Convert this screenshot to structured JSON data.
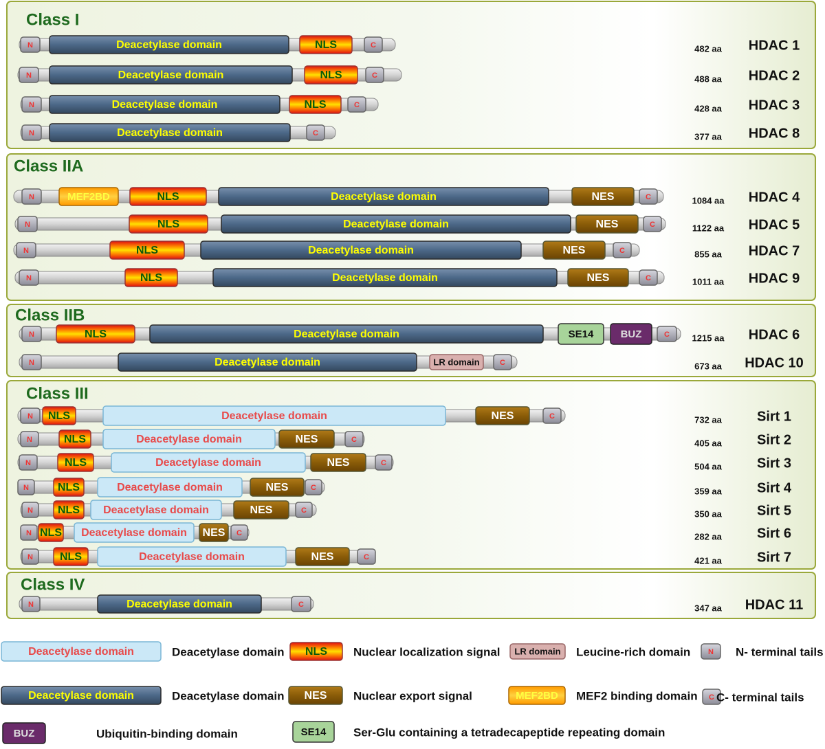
{
  "classes": [
    {
      "title": "Class I",
      "proteins": [
        {
          "name": "HDAC 1",
          "length": "482 aa",
          "domains": [
            "N",
            "Deacetylase domain",
            "NLS",
            "C"
          ]
        },
        {
          "name": "HDAC 2",
          "length": "488 aa",
          "domains": [
            "N",
            "Deacetylase domain",
            "NLS",
            "C"
          ]
        },
        {
          "name": "HDAC 3",
          "length": "428 aa",
          "domains": [
            "N",
            "Deacetylase domain",
            "NLS",
            "C"
          ]
        },
        {
          "name": "HDAC 8",
          "length": "377 aa",
          "domains": [
            "N",
            "Deacetylase domain",
            "C"
          ]
        }
      ]
    },
    {
      "title": "Class IIA",
      "proteins": [
        {
          "name": "HDAC 4",
          "length": "1084 aa",
          "domains": [
            "N",
            "MEF2BD",
            "NLS",
            "Deacetylase domain",
            "NES",
            "C"
          ]
        },
        {
          "name": "HDAC 5",
          "length": "1122 aa",
          "domains": [
            "N",
            "NLS",
            "Deacetylase domain",
            "NES",
            "C"
          ]
        },
        {
          "name": "HDAC 7",
          "length": "855 aa",
          "domains": [
            "N",
            "NLS",
            "Deacetylase domain",
            "NES",
            "C"
          ]
        },
        {
          "name": "HDAC 9",
          "length": "1011 aa",
          "domains": [
            "N",
            "NLS",
            "Deacetylase domain",
            "NES",
            "C"
          ]
        }
      ]
    },
    {
      "title": "Class IIB",
      "proteins": [
        {
          "name": "HDAC 6",
          "length": "1215 aa",
          "domains": [
            "N",
            "NLS",
            "Deacetylase domain",
            "SE14",
            "BUZ",
            "C"
          ]
        },
        {
          "name": "HDAC 10",
          "length": "673 aa",
          "domains": [
            "N",
            "Deacetylase domain",
            "LR domain",
            "C"
          ]
        }
      ]
    },
    {
      "title": "Class III",
      "proteins": [
        {
          "name": "Sirt 1",
          "length": "732 aa",
          "domains": [
            "N",
            "NLS",
            "Deacetylase domain",
            "NES",
            "C"
          ]
        },
        {
          "name": "Sirt 2",
          "length": "405 aa",
          "domains": [
            "N",
            "NLS",
            "Deacetylase domain",
            "NES",
            "C"
          ]
        },
        {
          "name": "Sirt 3",
          "length": "504 aa",
          "domains": [
            "N",
            "NLS",
            "Deacetylase domain",
            "NES",
            "C"
          ]
        },
        {
          "name": "Sirt 4",
          "length": "359 aa",
          "domains": [
            "N",
            "NLS",
            "Deacetylase domain",
            "NES",
            "C"
          ]
        },
        {
          "name": "Sirt 5",
          "length": "350 aa",
          "domains": [
            "N",
            "NLS",
            "Deacetylase domain",
            "NES",
            "C"
          ]
        },
        {
          "name": "Sirt 6",
          "length": "282 aa",
          "domains": [
            "N",
            "NLS",
            "Deacetylase domain",
            "NES",
            "C"
          ]
        },
        {
          "name": "Sirt 7",
          "length": "421 aa",
          "domains": [
            "N",
            "NLS",
            "Deacetylase domain",
            "NES",
            "C"
          ]
        }
      ]
    },
    {
      "title": "Class IV",
      "proteins": [
        {
          "name": "HDAC 11",
          "length": "347 aa",
          "domains": [
            "N",
            "Deacetylase domain",
            "C"
          ]
        }
      ]
    }
  ],
  "legend": [
    {
      "sample": "Deacetylase domain",
      "label": "Deacetylase domain"
    },
    {
      "sample": "NLS",
      "label": "Nuclear localization signal"
    },
    {
      "sample": "LR domain",
      "label": "Leucine-rich domain"
    },
    {
      "sample": "N",
      "label": "N- terminal tails"
    },
    {
      "sample": "Deacetylase domain",
      "label": "Deacetylase domain"
    },
    {
      "sample": "NES",
      "label": "Nuclear export signal"
    },
    {
      "sample": "MEF2BD",
      "label": "MEF2 binding domain"
    },
    {
      "sample": "C",
      "label": "C- terminal tails"
    },
    {
      "sample": "BUZ",
      "label": "Ubiquitin-binding domain"
    },
    {
      "sample": "SE14",
      "label": "Ser-Glu containing a tetradecapeptide repeating domain"
    }
  ]
}
